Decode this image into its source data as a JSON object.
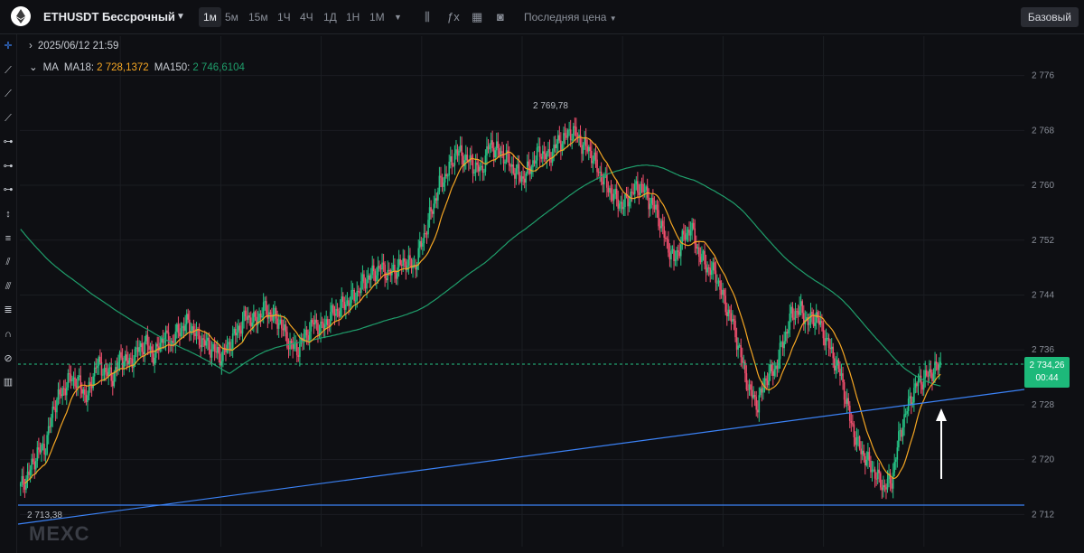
{
  "toolbar": {
    "symbol": "ETHUSDT Бессрочный",
    "timeframes": [
      "1м",
      "5м",
      "15м",
      "1Ч",
      "4Ч",
      "1Д",
      "1Н",
      "1М"
    ],
    "active_timeframe": "1м",
    "price_type": "Последняя цена",
    "base_button": "Базовый"
  },
  "legend": {
    "date": "2025/06/12 21:59",
    "ma_label": "MA",
    "ma18_label": "MA18:",
    "ma18_value": "2 728,1372",
    "ma150_label": "MA150:",
    "ma150_value": "2 746,6104"
  },
  "price_tag": {
    "price": "2 734,26",
    "countdown": "00:44"
  },
  "annotations": {
    "high": "2 769,78",
    "low": "2 713,38"
  },
  "watermark": "MEXC",
  "colors": {
    "up": "#26c486",
    "down": "#f0506e",
    "ma18": "#f5a623",
    "ma150": "#1f9e6b",
    "trend": "#3b82f6"
  },
  "chart_data": {
    "type": "candlestick",
    "y_ticks": [
      "2 776",
      "2 768",
      "2 760",
      "2 752",
      "2 744",
      "2 736",
      "2 728",
      "2 720",
      "2 712"
    ],
    "ylim": [
      2711,
      2777
    ],
    "last_price": 2734.26,
    "ma18_last": 2728.1372,
    "ma150_last": 2746.6104,
    "high": 2769.78,
    "low": 2713.38,
    "close_path": [
      2716,
      2718,
      2721,
      2722,
      2728,
      2730,
      2732,
      2731,
      2729,
      2734,
      2733,
      2732,
      2735,
      2734,
      2736,
      2737,
      2735,
      2738,
      2737,
      2739,
      2740,
      2738,
      2737,
      2736,
      2735,
      2737,
      2739,
      2741,
      2740,
      2742,
      2741,
      2740,
      2737,
      2736,
      2738,
      2740,
      2739,
      2741,
      2742,
      2743,
      2744,
      2746,
      2747,
      2748,
      2747,
      2748,
      2749,
      2748,
      2752,
      2756,
      2760,
      2762,
      2765,
      2764,
      2763,
      2762,
      2766,
      2765,
      2764,
      2762,
      2761,
      2763,
      2765,
      2764,
      2766,
      2767,
      2768,
      2766,
      2765,
      2762,
      2760,
      2758,
      2757,
      2759,
      2760,
      2758,
      2756,
      2752,
      2749,
      2752,
      2754,
      2750,
      2748,
      2747,
      2743,
      2740,
      2735,
      2730,
      2728,
      2732,
      2733,
      2737,
      2741,
      2742,
      2740,
      2741,
      2738,
      2735,
      2732,
      2726,
      2722,
      2720,
      2718,
      2716,
      2717,
      2724,
      2728,
      2731,
      2732,
      2733,
      2734
    ]
  }
}
